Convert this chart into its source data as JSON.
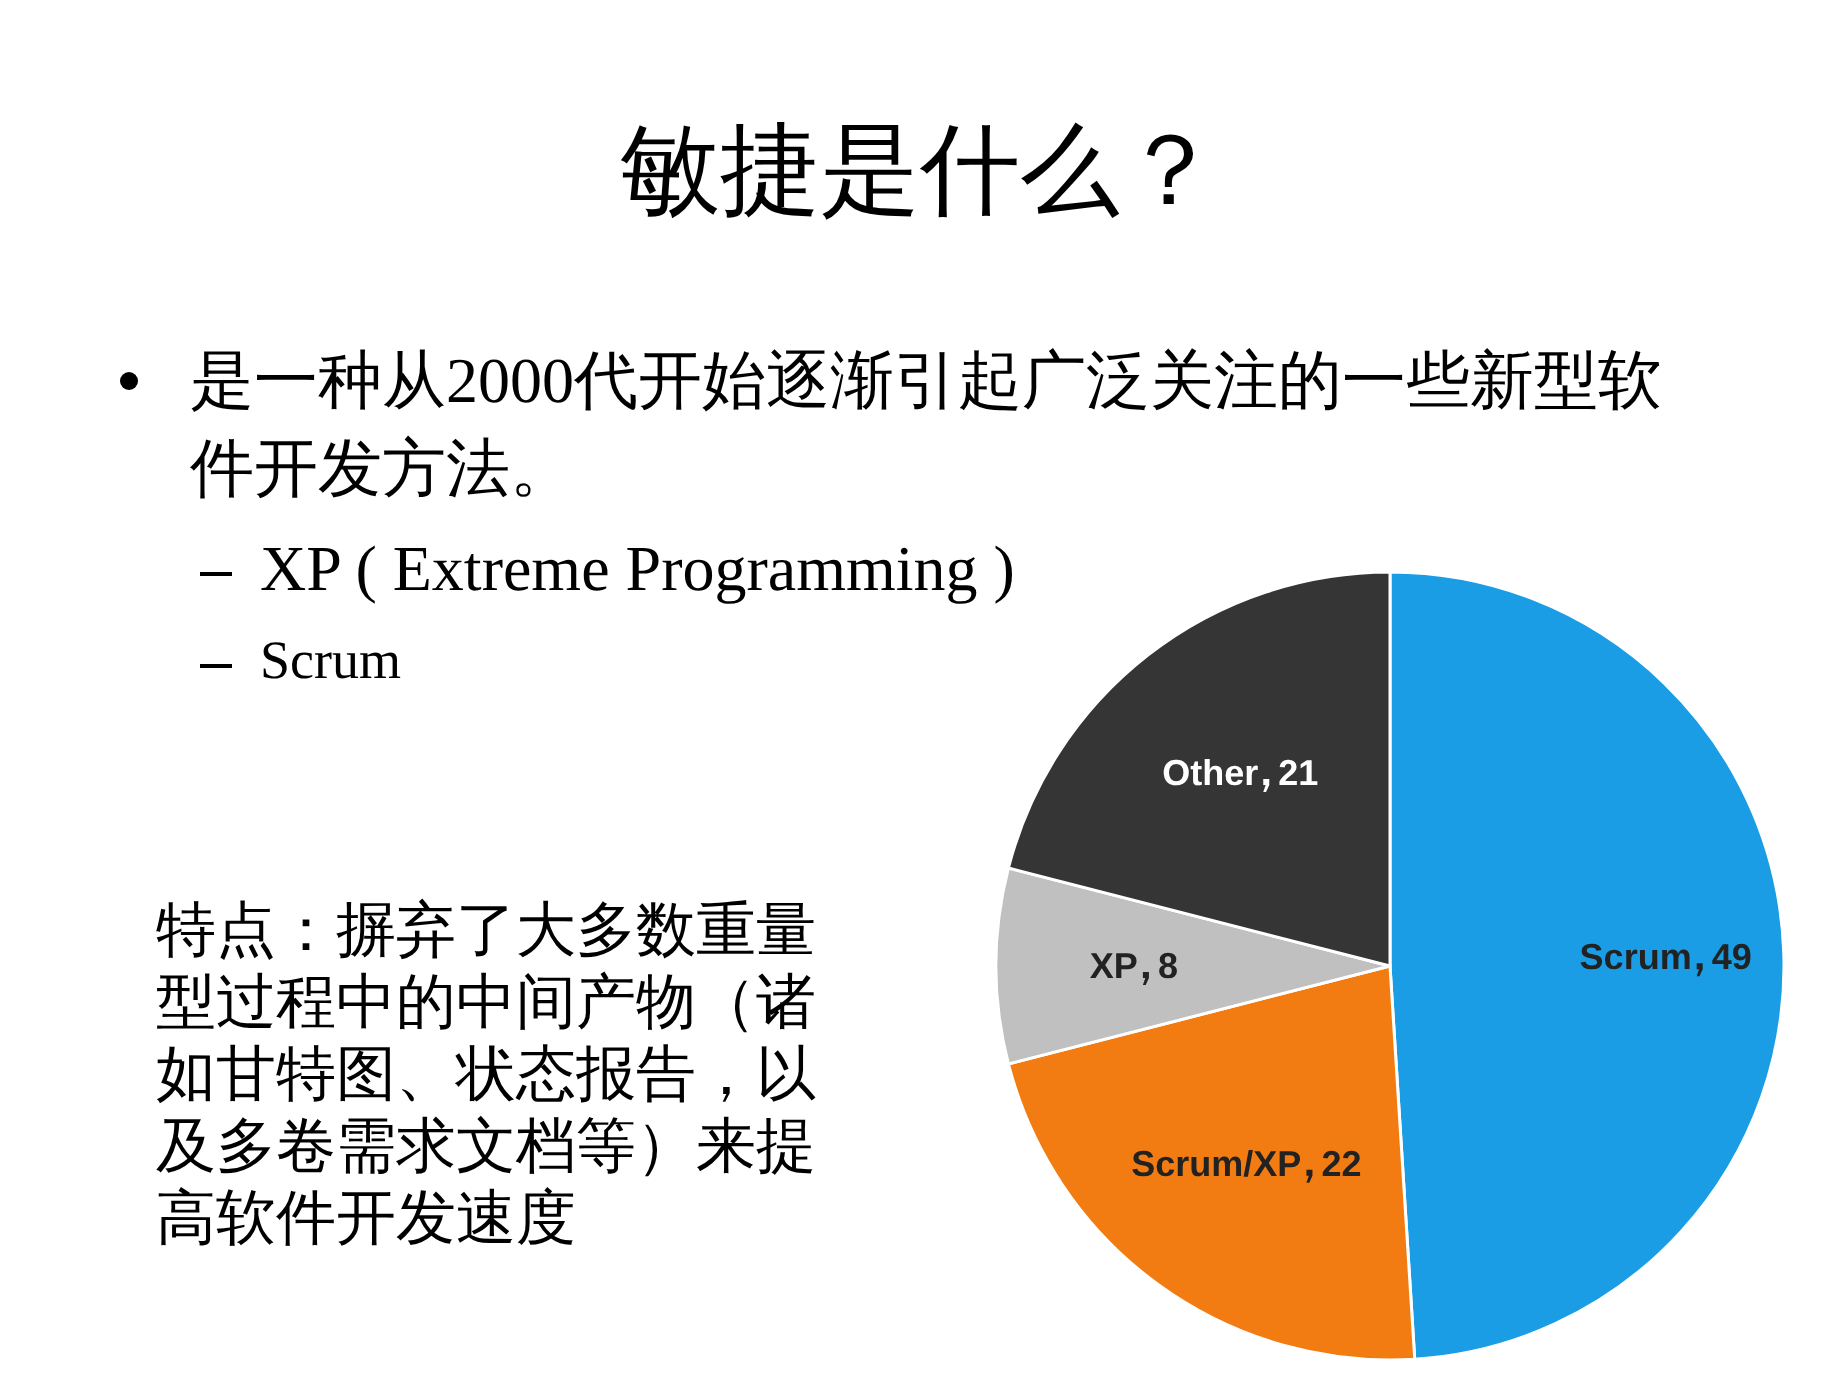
{
  "chart_data": {
    "type": "pie",
    "title": "敏捷是什么？",
    "categories": [
      "Scrum",
      "Scrum/XP",
      "XP",
      "Other"
    ],
    "values": [
      49,
      22,
      8,
      21
    ],
    "colors": [
      "#1a9de4",
      "#f27c12",
      "#c0c0c0",
      "#353535"
    ],
    "data_labels": true,
    "annotations": [
      "是一种从2000代开始逐渐引起广泛关注的一些新型软件开发方法。",
      "XP ( Extreme Programming )",
      "Scrum",
      "特点：摒弃了大多数重量型过程中的中间产物（诸如甘特图、状态报告，以及多卷需求文档等）来提高软件开发速度"
    ]
  }
}
